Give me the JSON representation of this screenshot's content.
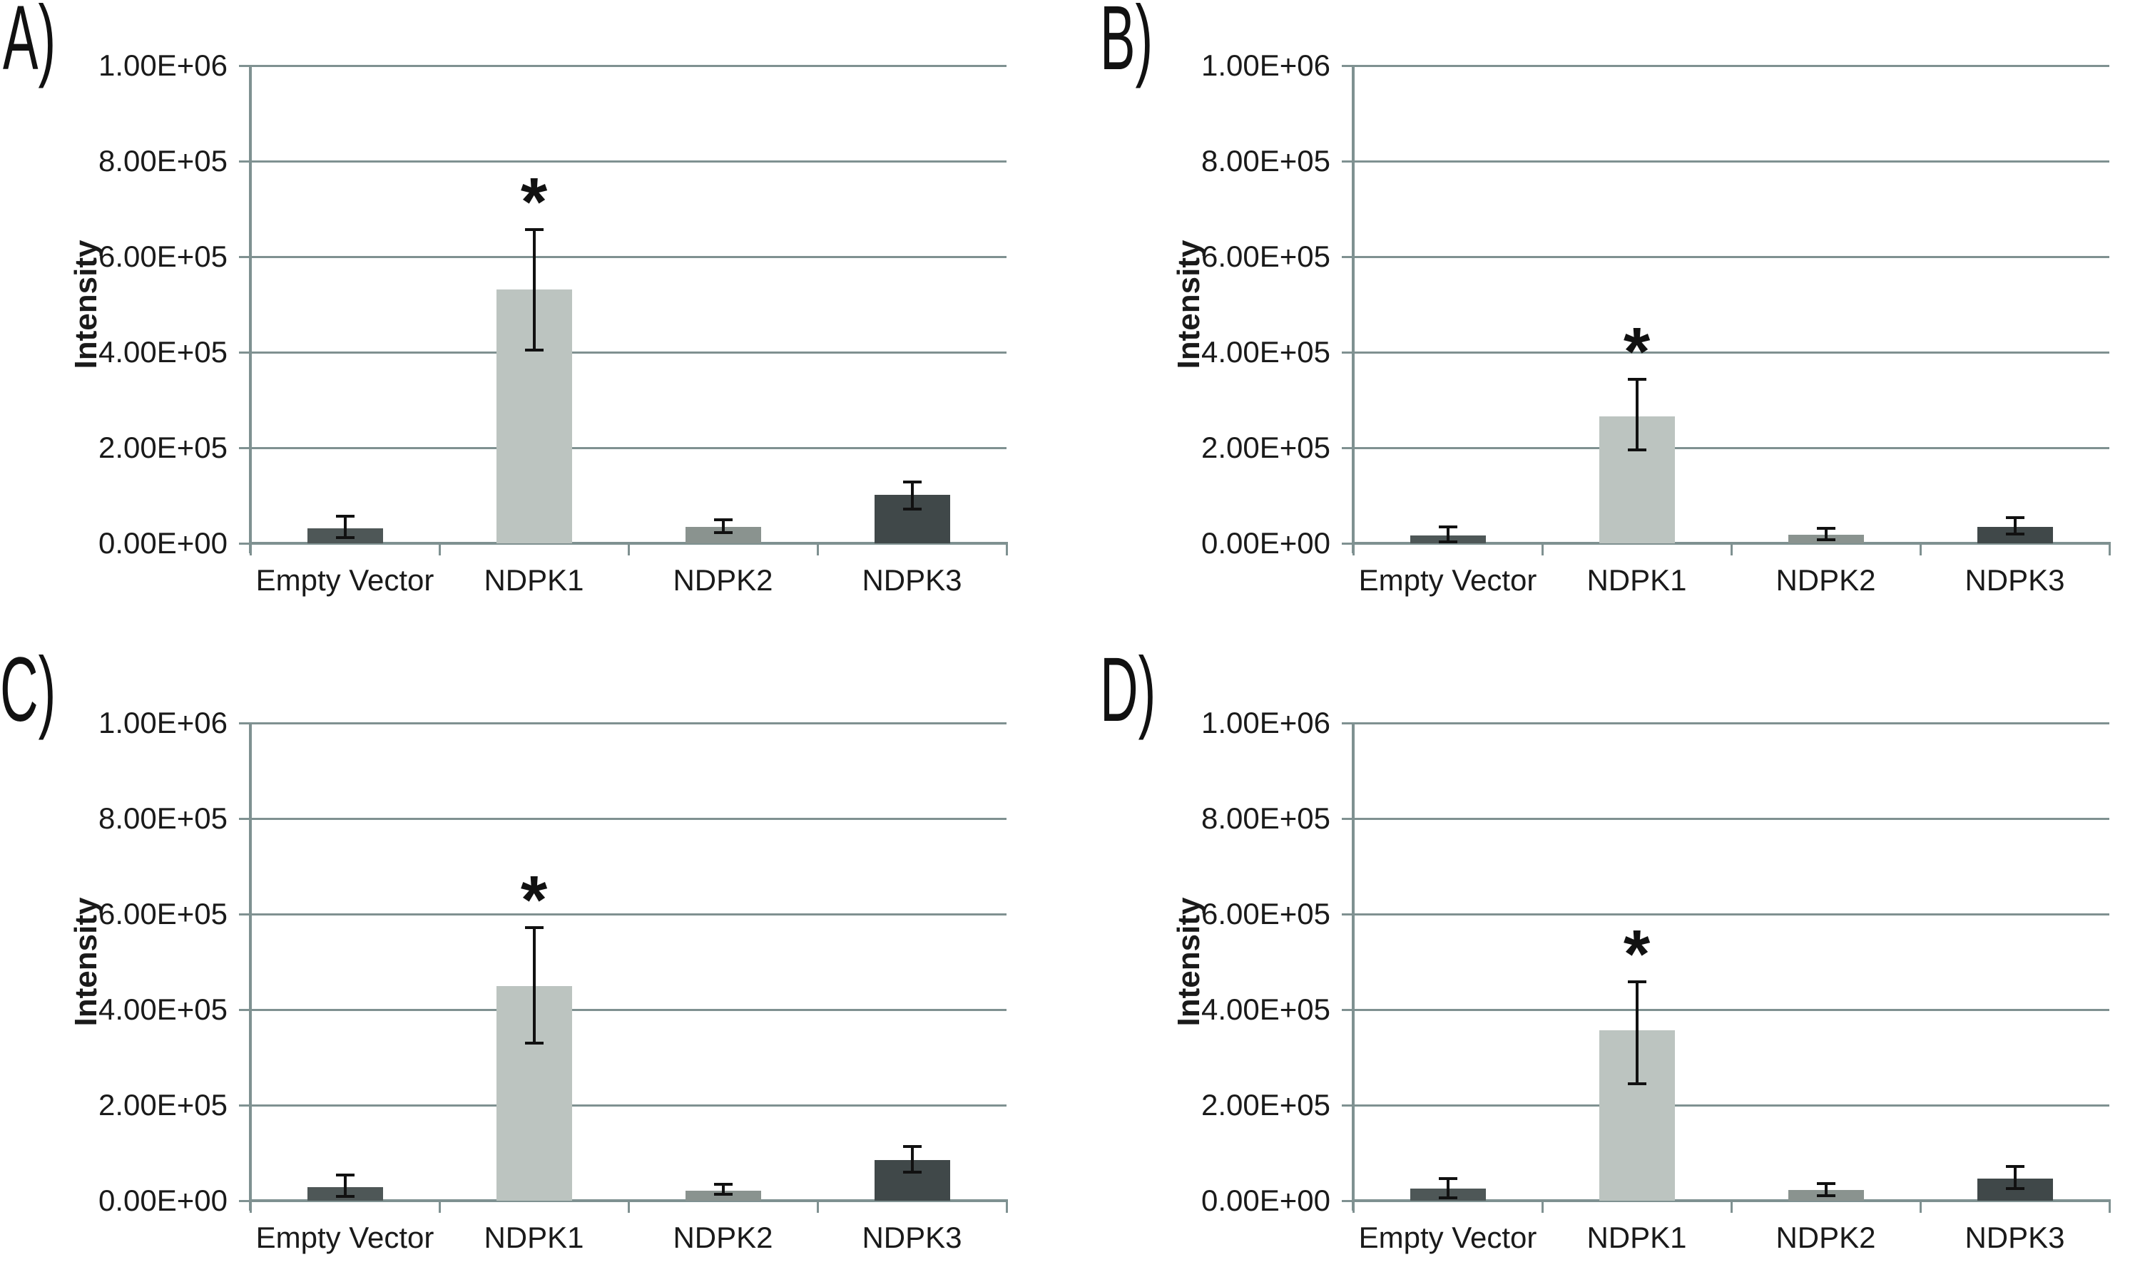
{
  "figure": {
    "panel_labels": [
      "A)",
      "B)",
      "C)",
      "D)"
    ],
    "ylabel": "Intensity",
    "categories": [
      "Empty Vector",
      "NDPK1",
      "NDPK2",
      "NDPK3"
    ],
    "ytick_labels": [
      "0.00E+00",
      "2.00E+05",
      "4.00E+05",
      "6.00E+05",
      "8.00E+05",
      "1.00E+06"
    ],
    "significance_marker": "*",
    "colors": {
      "bar_empty_vector": "#4e5757",
      "bar_ndpk1": "#bcc4c0",
      "bar_ndpk2": "#8a938f",
      "bar_ndpk3": "#404849",
      "gridline": "#7f9191",
      "axis": "#7f9191",
      "error_bar": "#111111",
      "text": "#1a1a1a"
    }
  },
  "chart_data": [
    {
      "panel": "A)",
      "type": "bar",
      "title": "",
      "xlabel": "",
      "ylabel": "Intensity",
      "ylim": [
        0,
        1000000
      ],
      "ytick_step": 200000,
      "grid": true,
      "categories": [
        "Empty Vector",
        "NDPK1",
        "NDPK2",
        "NDPK3"
      ],
      "values": [
        32000,
        531000,
        35000,
        101000
      ],
      "error_low": [
        12000,
        405000,
        22000,
        72000
      ],
      "error_high": [
        56000,
        657000,
        50000,
        128000
      ],
      "significant": [
        false,
        true,
        false,
        false
      ]
    },
    {
      "panel": "B)",
      "type": "bar",
      "title": "",
      "xlabel": "",
      "ylabel": "Intensity",
      "ylim": [
        0,
        1000000
      ],
      "ytick_step": 200000,
      "grid": true,
      "categories": [
        "Empty Vector",
        "NDPK1",
        "NDPK2",
        "NDPK3"
      ],
      "values": [
        17000,
        266000,
        18000,
        34000
      ],
      "error_low": [
        3000,
        195000,
        8000,
        19000
      ],
      "error_high": [
        35000,
        344000,
        31000,
        54000
      ],
      "significant": [
        false,
        true,
        false,
        false
      ]
    },
    {
      "panel": "C)",
      "type": "bar",
      "title": "",
      "xlabel": "",
      "ylabel": "Intensity",
      "ylim": [
        0,
        1000000
      ],
      "ytick_step": 200000,
      "grid": true,
      "categories": [
        "Empty Vector",
        "NDPK1",
        "NDPK2",
        "NDPK3"
      ],
      "values": [
        29000,
        449000,
        21000,
        85000
      ],
      "error_low": [
        9000,
        330000,
        13000,
        60000
      ],
      "error_high": [
        54000,
        572000,
        34000,
        113000
      ],
      "significant": [
        false,
        true,
        false,
        false
      ]
    },
    {
      "panel": "D)",
      "type": "bar",
      "title": "",
      "xlabel": "",
      "ylabel": "Intensity",
      "ylim": [
        0,
        1000000
      ],
      "ytick_step": 200000,
      "grid": true,
      "categories": [
        "Empty Vector",
        "NDPK1",
        "NDPK2",
        "NDPK3"
      ],
      "values": [
        25000,
        357000,
        22000,
        46000
      ],
      "error_low": [
        6000,
        245000,
        10000,
        25000
      ],
      "error_high": [
        46000,
        458000,
        36000,
        72000
      ],
      "significant": [
        false,
        true,
        false,
        false
      ]
    }
  ]
}
